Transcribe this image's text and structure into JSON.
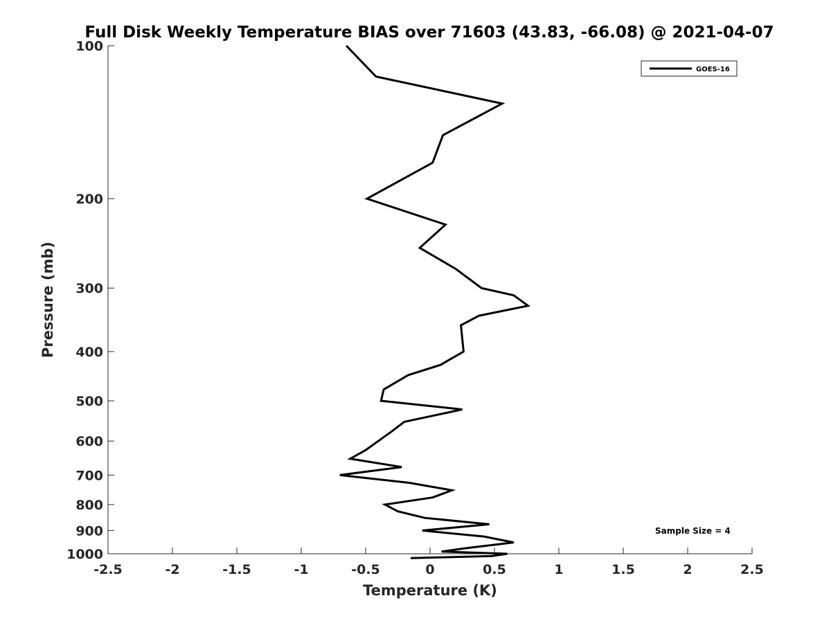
{
  "chart_data": {
    "type": "line",
    "title": "Full Disk Weekly Temperature BIAS over 71603 (43.83, -66.08) @ 2021-04-07",
    "xlabel": "Temperature (K)",
    "ylabel": "Pressure (mb)",
    "xlim": [
      -2.5,
      2.5
    ],
    "ylim": [
      100,
      1000
    ],
    "y_scale": "log",
    "y_reversed": true,
    "x_ticks": [
      -2.5,
      -2,
      -1.5,
      -1,
      -0.5,
      0,
      0.5,
      1,
      1.5,
      2,
      2.5
    ],
    "x_tick_labels": [
      "-2.5",
      "-2",
      "-1.5",
      "-1",
      "-0.5",
      "0",
      "0.5",
      "1",
      "1.5",
      "2",
      "2.5"
    ],
    "y_ticks": [
      100,
      200,
      300,
      400,
      500,
      600,
      700,
      800,
      900,
      1000
    ],
    "y_tick_labels": [
      "100",
      "200",
      "300",
      "400",
      "500",
      "600",
      "700",
      "800",
      "900",
      "1000"
    ],
    "grid": false,
    "legend_position": "top-right",
    "series": [
      {
        "name": "GOES-16",
        "color": "#000000",
        "points": [
          {
            "x": -0.65,
            "y": 100
          },
          {
            "x": -0.42,
            "y": 115
          },
          {
            "x": 0.56,
            "y": 130
          },
          {
            "x": 0.1,
            "y": 150
          },
          {
            "x": 0.02,
            "y": 170
          },
          {
            "x": -0.49,
            "y": 200
          },
          {
            "x": 0.12,
            "y": 225
          },
          {
            "x": -0.08,
            "y": 250
          },
          {
            "x": 0.2,
            "y": 275
          },
          {
            "x": 0.4,
            "y": 300
          },
          {
            "x": 0.65,
            "y": 310
          },
          {
            "x": 0.76,
            "y": 325
          },
          {
            "x": 0.38,
            "y": 340
          },
          {
            "x": 0.24,
            "y": 355
          },
          {
            "x": 0.26,
            "y": 400
          },
          {
            "x": 0.08,
            "y": 425
          },
          {
            "x": -0.17,
            "y": 445
          },
          {
            "x": -0.36,
            "y": 475
          },
          {
            "x": -0.38,
            "y": 500
          },
          {
            "x": 0.25,
            "y": 520
          },
          {
            "x": -0.2,
            "y": 550
          },
          {
            "x": -0.3,
            "y": 575
          },
          {
            "x": -0.5,
            "y": 625
          },
          {
            "x": -0.62,
            "y": 650
          },
          {
            "x": -0.22,
            "y": 675
          },
          {
            "x": -0.7,
            "y": 700
          },
          {
            "x": -0.16,
            "y": 725
          },
          {
            "x": 0.17,
            "y": 750
          },
          {
            "x": 0.02,
            "y": 775
          },
          {
            "x": -0.35,
            "y": 800
          },
          {
            "x": -0.25,
            "y": 825
          },
          {
            "x": -0.04,
            "y": 850
          },
          {
            "x": 0.46,
            "y": 875
          },
          {
            "x": -0.06,
            "y": 900
          },
          {
            "x": 0.42,
            "y": 925
          },
          {
            "x": 0.65,
            "y": 950
          },
          {
            "x": 0.28,
            "y": 975
          },
          {
            "x": 0.09,
            "y": 990
          },
          {
            "x": 0.6,
            "y": 1000
          },
          {
            "x": 0.48,
            "y": 1010
          },
          {
            "x": -0.15,
            "y": 1020
          }
        ]
      }
    ]
  },
  "annotation": {
    "sample_size": "Sample Size = 4"
  }
}
